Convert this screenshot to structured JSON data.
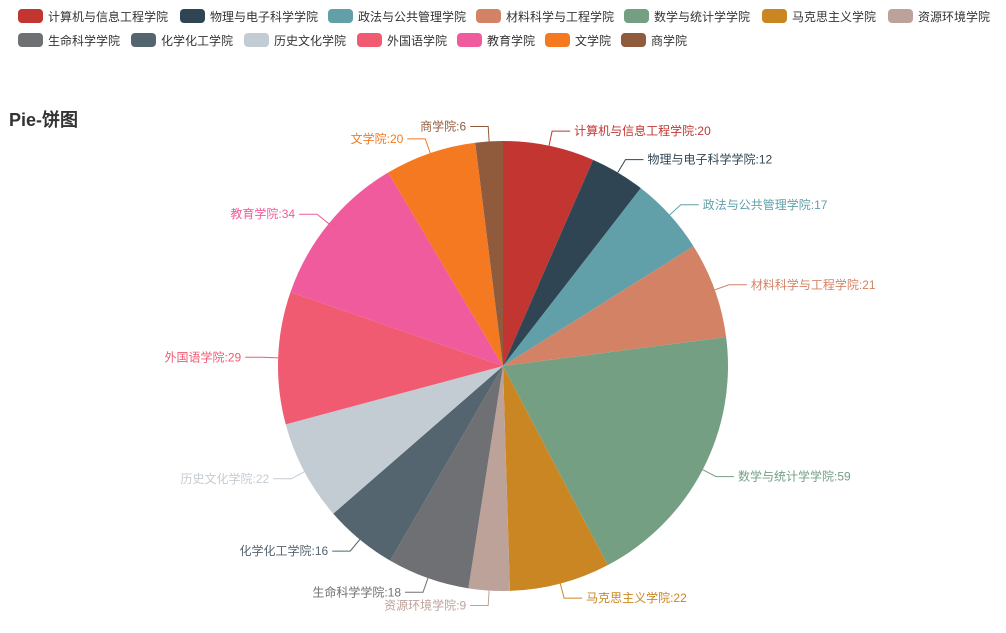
{
  "chart_data": {
    "type": "pie",
    "title": "Pie-饼图",
    "legend_position": "top",
    "slices": [
      {
        "name": "计算机与信息工程学院",
        "value": 20,
        "color": "#c23531"
      },
      {
        "name": "物理与电子科学学院",
        "value": 12,
        "color": "#2f4554"
      },
      {
        "name": "政法与公共管理学院",
        "value": 17,
        "color": "#61a0a8"
      },
      {
        "name": "材料科学与工程学院",
        "value": 21,
        "color": "#d48265"
      },
      {
        "name": "数学与统计学学院",
        "value": 59,
        "color": "#749f83"
      },
      {
        "name": "马克思主义学院",
        "value": 22,
        "color": "#ca8622"
      },
      {
        "name": "资源环境学院",
        "value": 9,
        "color": "#bda29a"
      },
      {
        "name": "生命科学学院",
        "value": 18,
        "color": "#6e7074"
      },
      {
        "name": "化学化工学院",
        "value": 16,
        "color": "#546570"
      },
      {
        "name": "历史文化学院",
        "value": 22,
        "color": "#c4ccd3"
      },
      {
        "name": "外国语学院",
        "value": 29,
        "color": "#f05b72"
      },
      {
        "name": "教育学院",
        "value": 34,
        "color": "#ef5b9c"
      },
      {
        "name": "文学院",
        "value": 20,
        "color": "#f47920"
      },
      {
        "name": "商学院",
        "value": 6,
        "color": "#905a3d"
      }
    ]
  }
}
